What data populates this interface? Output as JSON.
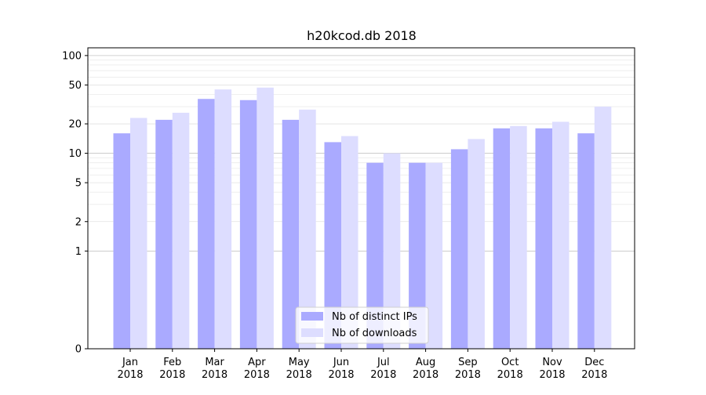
{
  "chart_data": {
    "type": "bar",
    "title": "h20kcod.db 2018",
    "xlabel": "",
    "ylabel": "",
    "y_scale": "symlog",
    "ylim": [
      0,
      120
    ],
    "y_ticks": [
      0,
      1,
      2,
      5,
      10,
      20,
      50,
      100
    ],
    "y_tick_labels": [
      "0",
      "1",
      "2",
      "5",
      "10",
      "20",
      "50",
      "100"
    ],
    "grid": true,
    "legend_position": "bottom-center",
    "categories": [
      [
        "Jan",
        "2018"
      ],
      [
        "Feb",
        "2018"
      ],
      [
        "Mar",
        "2018"
      ],
      [
        "Apr",
        "2018"
      ],
      [
        "May",
        "2018"
      ],
      [
        "Jun",
        "2018"
      ],
      [
        "Jul",
        "2018"
      ],
      [
        "Aug",
        "2018"
      ],
      [
        "Sep",
        "2018"
      ],
      [
        "Oct",
        "2018"
      ],
      [
        "Nov",
        "2018"
      ],
      [
        "Dec",
        "2018"
      ]
    ],
    "series": [
      {
        "name": "Nb of distinct IPs",
        "color": "#aaaaff",
        "values": [
          16,
          22,
          36,
          35,
          22,
          13,
          8,
          8,
          11,
          18,
          18,
          16
        ]
      },
      {
        "name": "Nb of downloads",
        "color": "#ddddff",
        "values": [
          23,
          26,
          45,
          47,
          28,
          15,
          10,
          8,
          14,
          19,
          21,
          30
        ]
      }
    ]
  }
}
